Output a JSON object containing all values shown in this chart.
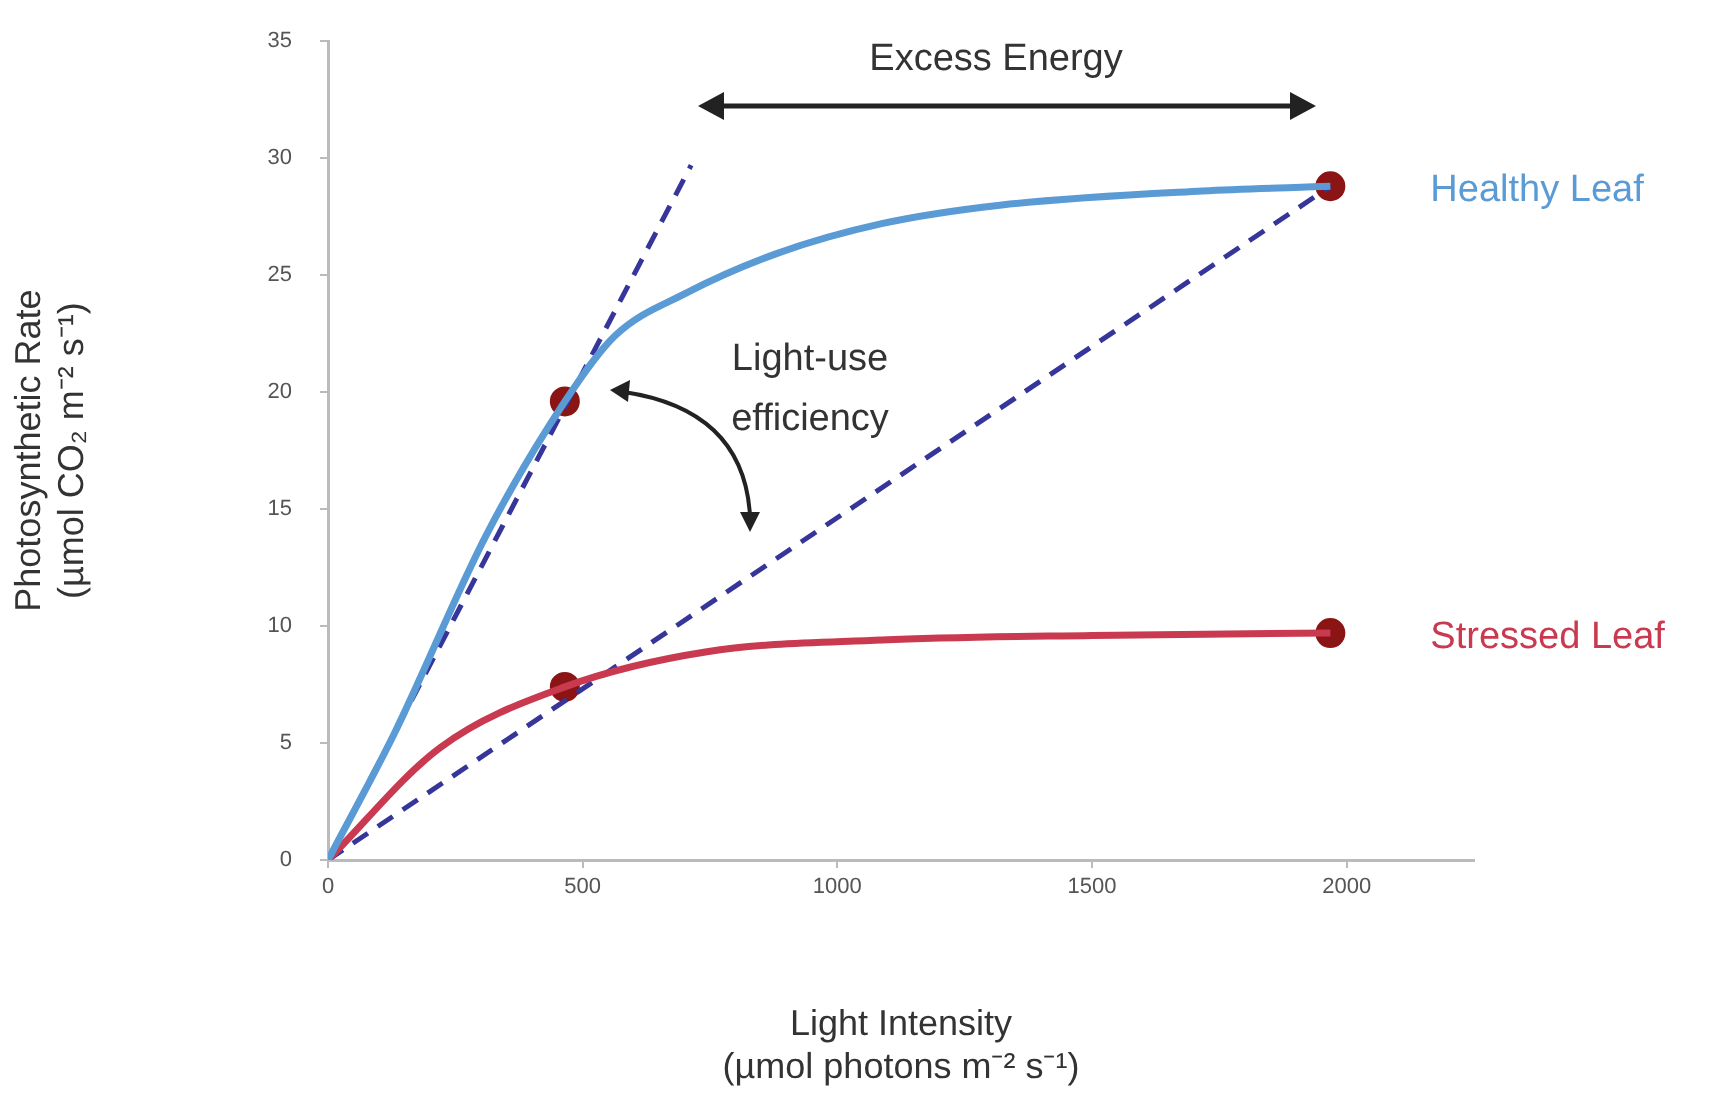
{
  "chart_data": {
    "type": "line",
    "xlabel": "Light Intensity\n(µmol photons m⁻² s⁻¹)",
    "ylabel": "Photosynthetic Rate\n(µmol CO₂ m⁻² s⁻¹)",
    "annotations": [
      "Excess Energy",
      "Light-use\nefficiency"
    ],
    "series": [
      {
        "name": "Healthy Leaf",
        "color": "#5a9bd5",
        "x": [
          0,
          130,
          311,
          465,
          563,
          700,
          878,
          1087,
          1323,
          1717,
          1968
        ],
        "values": [
          0,
          5.4,
          13.9,
          19.6,
          22.4,
          24.2,
          25.9,
          27.2,
          28.0,
          28.6,
          28.8
        ]
      },
      {
        "name": "Stressed Leaf",
        "color": "#c9394f",
        "x": [
          0,
          220,
          465,
          744,
          1087,
          1500,
          1968
        ],
        "values": [
          0,
          4.8,
          7.4,
          8.9,
          9.4,
          9.6,
          9.7
        ]
      },
      {
        "type": "line",
        "line_style": "dashed",
        "color": "#35359a",
        "x": [
          0,
          713
        ],
        "values": [
          0,
          29.7
        ]
      },
      {
        "type": "line",
        "line_style": "dashed",
        "color": "#35359a",
        "x": [
          0,
          1968
        ],
        "values": [
          0,
          28.8
        ]
      },
      {
        "type": "scatter",
        "marker": "circle",
        "color": "#8b1414",
        "x": [
          465,
          1968,
          465,
          1968
        ],
        "values": [
          19.6,
          28.8,
          7.4,
          9.7
        ]
      }
    ],
    "marker": "none",
    "line_style": "solid",
    "legend": false,
    "grid": false,
    "xlim": [
      0,
      2250
    ],
    "xticks": [
      0,
      500,
      1000,
      1500,
      2000
    ],
    "ylim": [
      0,
      35
    ],
    "yticks": [
      0,
      5,
      10,
      15,
      20,
      25,
      30,
      35
    ]
  }
}
